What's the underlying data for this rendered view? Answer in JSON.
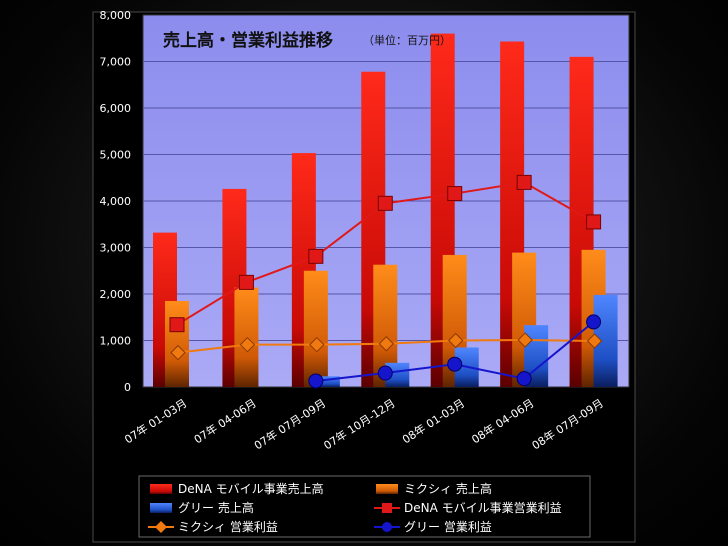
{
  "chart_data": {
    "type": "bar",
    "title": "売上高・営業利益推移",
    "subtitle": "（単位：百万円）",
    "categories": [
      "07年 01-03月",
      "07年 04-06月",
      "07年 07月-09月",
      "07年 10月-12月",
      "08年 01-03月",
      "08年 04-06月",
      "08年 07月-09月"
    ],
    "yticks": [
      "0",
      "1,000",
      "2,000",
      "3,000",
      "4,000",
      "5,000",
      "6,000",
      "7,000",
      "8,000"
    ],
    "ylim": [
      0,
      8000
    ],
    "grid": true,
    "legend_position": "bottom",
    "bar_series": [
      {
        "name": "DeNA モバイル事業売上高",
        "color": "#e8140a",
        "values": [
          3320,
          4260,
          5030,
          6780,
          7600,
          7430,
          7100
        ]
      },
      {
        "name": "ミクシィ 売上高",
        "color": "#f07a10",
        "values": [
          1850,
          2140,
          2500,
          2630,
          2840,
          2890,
          2950
        ]
      },
      {
        "name": "グリー 売上高",
        "color": "#2f6be8",
        "values": [
          null,
          null,
          230,
          520,
          850,
          1330,
          1980
        ]
      }
    ],
    "line_series": [
      {
        "name": "DeNA モバイル事業営業利益",
        "color": "#e01818",
        "marker": "square",
        "values": [
          1340,
          2250,
          2810,
          3950,
          4160,
          4400,
          3550
        ]
      },
      {
        "name": "ミクシィ 営業利益",
        "color": "#f07a10",
        "marker": "diamond",
        "values": [
          740,
          910,
          910,
          930,
          1000,
          1010,
          990
        ]
      },
      {
        "name": "グリー 営業利益",
        "color": "#1515cc",
        "marker": "circle",
        "values": [
          null,
          null,
          130,
          300,
          490,
          180,
          1400
        ]
      }
    ],
    "legend_order": [
      {
        "name": "DeNA モバイル事業売上高",
        "kind": "bar",
        "color": "#e8140a"
      },
      {
        "name": "ミクシィ 売上高",
        "kind": "bar",
        "color": "#f07a10"
      },
      {
        "name": "グリー 売上高",
        "kind": "bar",
        "color": "#2f6be8"
      },
      {
        "name": "DeNA モバイル事業営業利益",
        "kind": "line",
        "marker": "square",
        "color": "#e01818"
      },
      {
        "name": "ミクシィ 営業利益",
        "kind": "line",
        "marker": "diamond",
        "color": "#f07a10"
      },
      {
        "name": "グリー 営業利益",
        "kind": "line",
        "marker": "circle",
        "color": "#1515cc"
      }
    ]
  }
}
